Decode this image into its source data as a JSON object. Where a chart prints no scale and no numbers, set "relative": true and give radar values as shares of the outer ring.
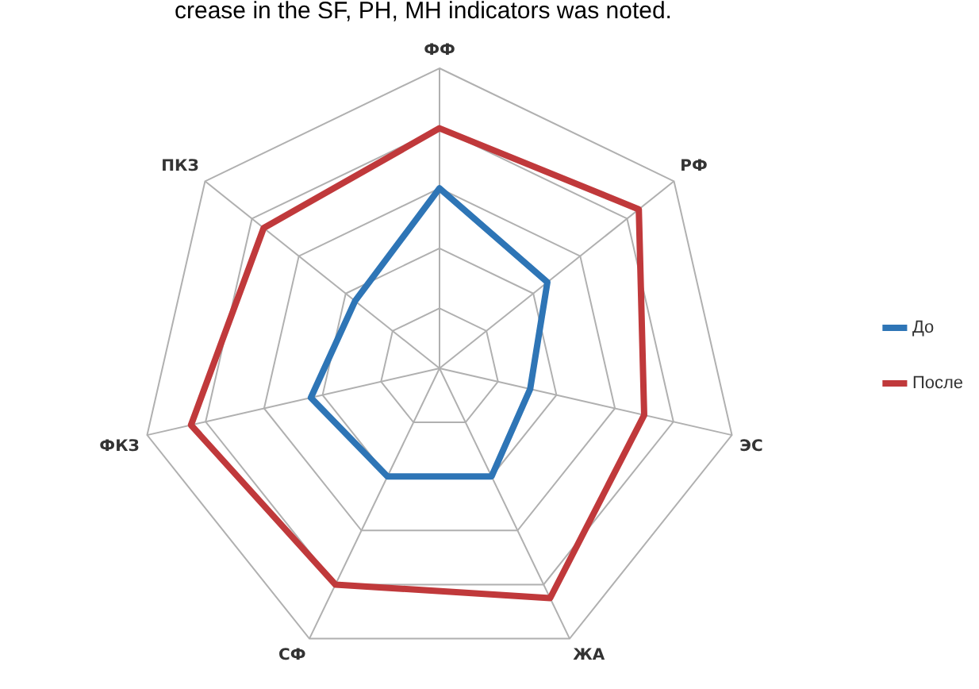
{
  "chart_data": {
    "type": "radar",
    "relative": true,
    "categories": [
      "ФФ",
      "РФ",
      "ЭС",
      "ЖА",
      "СФ",
      "ФКЗ",
      "ПКЗ"
    ],
    "series": [
      {
        "name": "До",
        "color": "#2e75b6",
        "values": [
          0.6,
          0.46,
          0.31,
          0.4,
          0.4,
          0.44,
          0.36
        ]
      },
      {
        "name": "После",
        "color": "#c0393b",
        "values": [
          0.8,
          0.85,
          0.7,
          0.85,
          0.8,
          0.85,
          0.75
        ]
      }
    ],
    "legend": "right",
    "grid": true,
    "marker": "none",
    "annotations": [
      "crease in the SF, PH, MH indicators was noted."
    ]
  }
}
